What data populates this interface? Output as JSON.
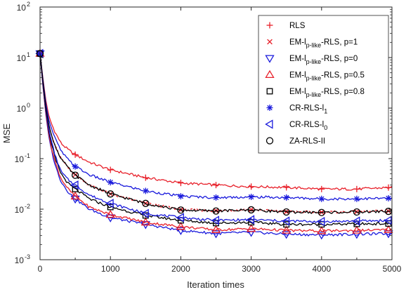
{
  "chart_data": {
    "type": "line",
    "title": "",
    "xlabel": "Iteration times",
    "ylabel": "MSE",
    "xlim": [
      0,
      5000
    ],
    "ylim": [
      0.001,
      100
    ],
    "yscale": "log",
    "grid": false,
    "legend_position": "top-right",
    "x_ticks": [
      "0",
      "1000",
      "2000",
      "3000",
      "4000",
      "5000"
    ],
    "y_ticks": [
      {
        "base": "10",
        "exp": "-3",
        "value": 0.001
      },
      {
        "base": "10",
        "exp": "-2",
        "value": 0.01
      },
      {
        "base": "10",
        "exp": "-1",
        "value": 0.1
      },
      {
        "base": "10",
        "exp": "0",
        "value": 1
      },
      {
        "base": "10",
        "exp": "1",
        "value": 10
      },
      {
        "base": "10",
        "exp": "2",
        "value": 100
      }
    ],
    "x": [
      0,
      40,
      80,
      120,
      160,
      220,
      300,
      400,
      500,
      700,
      1000,
      1500,
      2000,
      2500,
      3000,
      3500,
      4000,
      4500,
      5000
    ],
    "series": [
      {
        "name": "RLS",
        "marker": "plus",
        "color": "#e8202a",
        "values": [
          12,
          4,
          1.5,
          0.75,
          0.5,
          0.32,
          0.2,
          0.15,
          0.12,
          0.085,
          0.06,
          0.042,
          0.033,
          0.03,
          0.028,
          0.027,
          0.025,
          0.025,
          0.027
        ]
      },
      {
        "name": "EM-lp-like-RLS, p=1",
        "label_main": "EM-l",
        "label_sub": "p-like",
        "label_tail": "-RLS, p=1",
        "marker": "x",
        "color": "#e8202a",
        "values": [
          12,
          3.5,
          1.1,
          0.5,
          0.3,
          0.17,
          0.1,
          0.065,
          0.048,
          0.03,
          0.02,
          0.013,
          0.0098,
          0.0093,
          0.0098,
          0.0089,
          0.0087,
          0.0089,
          0.0092
        ]
      },
      {
        "name": "EM-lp-like-RLS, p=0",
        "label_main": "EM-l",
        "label_sub": "p-like",
        "label_tail": "-RLS, p=0",
        "marker": "tri-down",
        "color": "#1a1adc",
        "values": [
          12,
          2.8,
          0.8,
          0.3,
          0.15,
          0.07,
          0.035,
          0.022,
          0.016,
          0.01,
          0.0068,
          0.005,
          0.0038,
          0.0033,
          0.0035,
          0.0032,
          0.0031,
          0.0032,
          0.0033
        ]
      },
      {
        "name": "EM-lp-like-RLS, p=0.5",
        "label_main": "EM-l",
        "label_sub": "p-like",
        "label_tail": "-RLS, p=0.5",
        "marker": "tri-up",
        "color": "#e8202a",
        "values": [
          12,
          2.9,
          0.85,
          0.33,
          0.17,
          0.08,
          0.04,
          0.025,
          0.018,
          0.011,
          0.0078,
          0.0055,
          0.0045,
          0.0039,
          0.0041,
          0.0038,
          0.0037,
          0.0038,
          0.0039
        ]
      },
      {
        "name": "EM-lp-like-RLS, p=0.8",
        "label_main": "EM-l",
        "label_sub": "p-like",
        "label_tail": "-RLS, p=0.8",
        "marker": "square",
        "color": "#000000",
        "values": [
          12,
          3.1,
          0.95,
          0.38,
          0.2,
          0.095,
          0.05,
          0.032,
          0.025,
          0.016,
          0.011,
          0.0075,
          0.006,
          0.0053,
          0.0055,
          0.005,
          0.005,
          0.0051,
          0.0052
        ]
      },
      {
        "name": "CR-RLS-l1",
        "label_main": "CR-RLS-l",
        "label_sub": "1",
        "label_tail": "",
        "marker": "star",
        "color": "#1a1adc",
        "values": [
          12,
          3.8,
          1.3,
          0.62,
          0.4,
          0.24,
          0.14,
          0.095,
          0.07,
          0.048,
          0.034,
          0.023,
          0.018,
          0.017,
          0.0175,
          0.017,
          0.016,
          0.016,
          0.0165
        ]
      },
      {
        "name": "CR-RLS-l0",
        "label_main": "CR-RLS-l",
        "label_sub": "0",
        "label_tail": "",
        "marker": "tri-left",
        "color": "#1a1adc",
        "values": [
          12,
          3.2,
          1.0,
          0.42,
          0.22,
          0.11,
          0.055,
          0.038,
          0.03,
          0.019,
          0.013,
          0.0082,
          0.0068,
          0.006,
          0.0062,
          0.0058,
          0.0057,
          0.0058,
          0.006
        ]
      },
      {
        "name": "ZA-RLS-II",
        "label_main": "ZA-RLS-II",
        "label_sub": "",
        "label_tail": "",
        "marker": "circle",
        "color": "#000000",
        "values": [
          12,
          3.5,
          1.1,
          0.5,
          0.3,
          0.17,
          0.1,
          0.065,
          0.047,
          0.03,
          0.02,
          0.013,
          0.0096,
          0.0092,
          0.0097,
          0.0088,
          0.0086,
          0.0088,
          0.0091
        ]
      }
    ]
  }
}
